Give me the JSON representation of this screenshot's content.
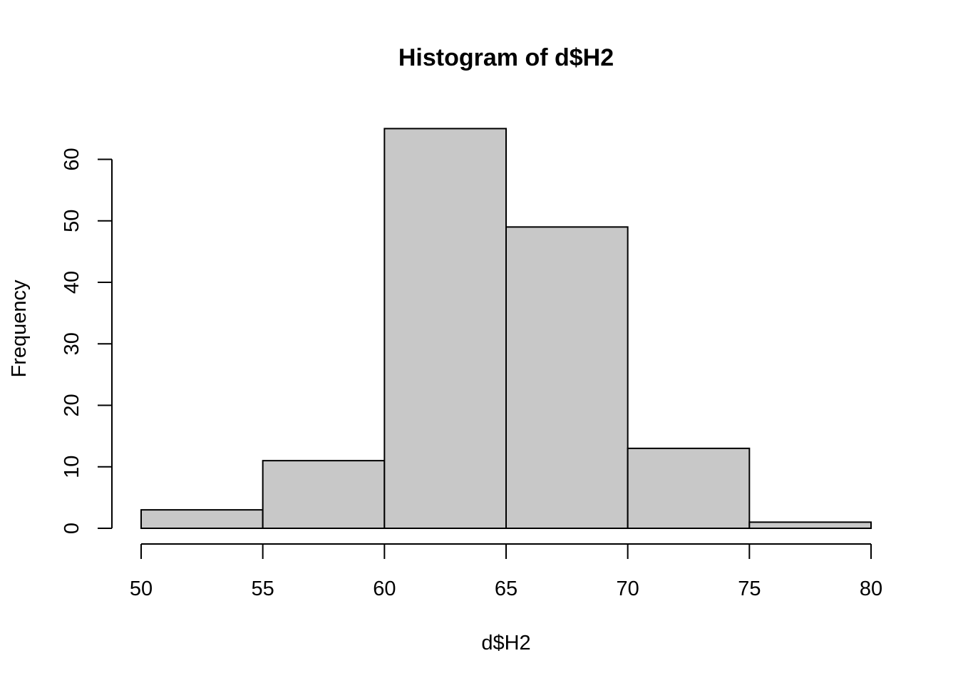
{
  "chart_data": {
    "type": "bar",
    "title": "Histogram of d$H2",
    "xlabel": "d$H2",
    "ylabel": "Frequency",
    "bins": [
      {
        "from": 50,
        "to": 55,
        "count": 3
      },
      {
        "from": 55,
        "to": 60,
        "count": 11
      },
      {
        "from": 60,
        "to": 65,
        "count": 65
      },
      {
        "from": 65,
        "to": 70,
        "count": 49
      },
      {
        "from": 70,
        "to": 75,
        "count": 13
      },
      {
        "from": 75,
        "to": 80,
        "count": 1
      }
    ],
    "xlim": [
      50,
      80
    ],
    "ylim": [
      0,
      65
    ],
    "x_ticks": [
      "50",
      "55",
      "60",
      "65",
      "70",
      "75",
      "80"
    ],
    "y_ticks": [
      "0",
      "10",
      "20",
      "30",
      "40",
      "50",
      "60"
    ],
    "grid": false,
    "colors": {
      "bar_fill": "#c8c8c8",
      "bar_stroke": "#000000",
      "axis": "#000000",
      "background": "#ffffff"
    }
  }
}
